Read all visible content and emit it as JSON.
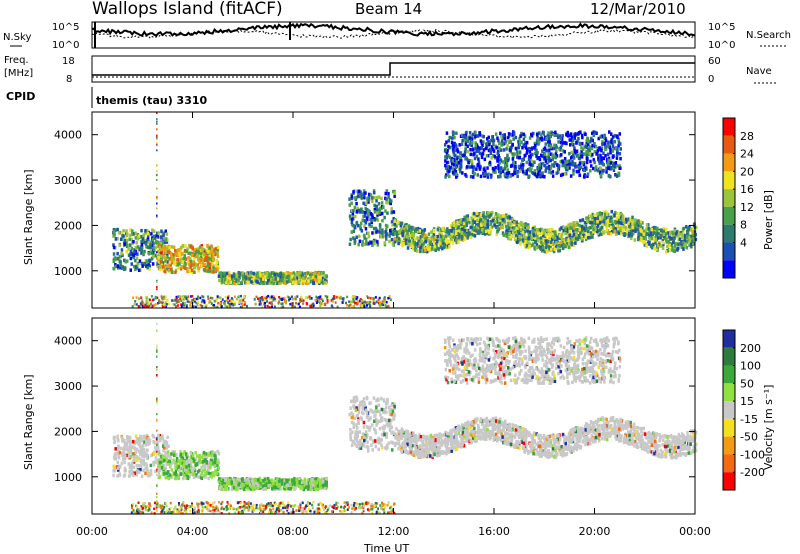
{
  "header": {
    "site": "Wallops Island (fitACF)",
    "beam": "Beam 14",
    "date": "12/Mar/2010"
  },
  "noise_panel": {
    "left_label": "N.Sky",
    "right_label": "N.Search",
    "ticks_left": [
      "10^5",
      "10^0"
    ],
    "ticks_right": [
      "10^5",
      "10^0"
    ]
  },
  "freq_panel": {
    "left_label_top": "Freq.",
    "left_label_unit": "[MHz]",
    "right_label": "Nave",
    "ticks_left": [
      "18",
      "8"
    ],
    "ticks_right": [
      "60",
      "0"
    ]
  },
  "cpid": {
    "label": "CPID",
    "value": "themis (tau) 3310"
  },
  "colors": {
    "power": [
      "#0000ff",
      "#1b4fb3",
      "#2e7a6e",
      "#4aa04a",
      "#9bc43a",
      "#f0e21f",
      "#f39c13",
      "#e85a10",
      "#ff0000"
    ],
    "velocity": [
      "#1f2fa0",
      "#2e7b3b",
      "#3aa83a",
      "#8fe040",
      "#c8c8c8",
      "#f4e01f",
      "#f39c13",
      "#f36a12",
      "#ff0000"
    ]
  },
  "chart_data": [
    {
      "type": "heatmap",
      "name": "power",
      "ylabel": "Slant Range [km]",
      "yticks": [
        "1000",
        "2000",
        "3000",
        "4000"
      ],
      "colorbar_label": "Power [dB]",
      "colorbar_ticks": [
        "4",
        "8",
        "12",
        "16",
        "20",
        "24",
        "28"
      ],
      "x_range_hours": [
        0,
        24
      ],
      "y_range_km": [
        180,
        4500
      ],
      "scatter_regions": [
        {
          "t_start": 0.8,
          "t_end": 3.0,
          "r_center": 1500,
          "r_spread": 450,
          "level": 0.35
        },
        {
          "t_start": 2.6,
          "t_end": 5.0,
          "r_center": 1300,
          "r_spread": 300,
          "level": 0.7
        },
        {
          "t_start": 5.0,
          "t_end": 9.3,
          "r_center": 880,
          "r_spread": 120,
          "level": 0.5
        },
        {
          "t_start": 10.2,
          "t_end": 12.0,
          "r_center": 2200,
          "r_spread": 600,
          "level": 0.3
        },
        {
          "t_start": 12.0,
          "t_end": 24.0,
          "r_center": 1900,
          "r_spread": 250,
          "level": 0.45
        },
        {
          "t_start": 14.0,
          "t_end": 21.0,
          "r_center": 3600,
          "r_spread": 500,
          "level": 0.2
        }
      ]
    },
    {
      "type": "heatmap",
      "name": "velocity",
      "ylabel": "Slant Range [km]",
      "yticks": [
        "1000",
        "2000",
        "3000",
        "4000"
      ],
      "colorbar_label": "Velocity [m s⁻¹]",
      "colorbar_ticks": [
        "200",
        "100",
        "50",
        "15",
        "-15",
        "-50",
        "-100",
        "-200"
      ],
      "xlabel": "Time UT",
      "xticks": [
        "00:00",
        "04:00",
        "08:00",
        "12:00",
        "16:00",
        "20:00",
        "00:00"
      ],
      "x_range_hours": [
        0,
        24
      ],
      "y_range_km": [
        180,
        4500
      ]
    }
  ]
}
